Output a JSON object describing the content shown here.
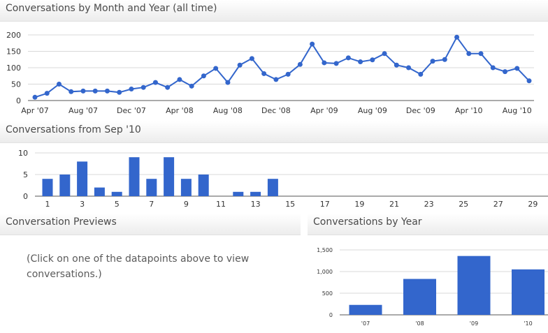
{
  "panels": {
    "monthly_title": "Conversations by Month and Year (all time)",
    "daily_title": "Conversations from Sep '10",
    "previews_title": "Conversation Previews",
    "previews_hint": "(Click on one of the datapoints above to view conversations.)",
    "yearly_title": "Conversations by Year"
  },
  "colors": {
    "series": "#3366cc",
    "grid": "#d8d8d8",
    "axis": "#333333"
  },
  "chart_data": [
    {
      "type": "line",
      "title": "Conversations by Month and Year (all time)",
      "xlabel": "",
      "ylabel": "",
      "ylim": [
        0,
        200
      ],
      "yticks": [
        "0",
        "50",
        "100",
        "150",
        "200"
      ],
      "x": [
        "Apr '07",
        "May '07",
        "Jun '07",
        "Jul '07",
        "Aug '07",
        "Sep '07",
        "Oct '07",
        "Nov '07",
        "Dec '07",
        "Jan '08",
        "Feb '08",
        "Mar '08",
        "Apr '08",
        "May '08",
        "Jun '08",
        "Jul '08",
        "Aug '08",
        "Sep '08",
        "Oct '08",
        "Nov '08",
        "Dec '08",
        "Jan '09",
        "Feb '09",
        "Mar '09",
        "Apr '09",
        "May '09",
        "Jun '09",
        "Jul '09",
        "Aug '09",
        "Sep '09",
        "Oct '09",
        "Nov '09",
        "Dec '09",
        "Jan '10",
        "Feb '10",
        "Mar '10",
        "Apr '10",
        "May '10",
        "Jun '10",
        "Jul '10",
        "Aug '10",
        "Sep '10"
      ],
      "xtick_labels": [
        "Apr '07",
        "Aug '07",
        "Dec '07",
        "Apr '08",
        "Aug '08",
        "Dec '08",
        "Apr '09",
        "Aug '09",
        "Dec '09",
        "Apr '10",
        "Aug '10"
      ],
      "values": [
        10,
        22,
        50,
        27,
        29,
        29,
        29,
        25,
        35,
        40,
        55,
        40,
        64,
        44,
        75,
        98,
        55,
        108,
        128,
        82,
        64,
        80,
        110,
        172,
        115,
        113,
        130,
        118,
        124,
        143,
        108,
        100,
        80,
        120,
        125,
        193,
        143,
        143,
        100,
        88,
        98,
        60
      ],
      "grid": true
    },
    {
      "type": "bar",
      "title": "Conversations from Sep '10",
      "xlabel": "",
      "ylabel": "",
      "ylim": [
        0,
        10
      ],
      "yticks": [
        "0",
        "5",
        "10"
      ],
      "categories": [
        "1",
        "2",
        "3",
        "4",
        "5",
        "6",
        "7",
        "8",
        "9",
        "10",
        "11",
        "12",
        "13",
        "14",
        "15",
        "16",
        "17",
        "18",
        "19",
        "20",
        "21",
        "22",
        "23",
        "24",
        "25",
        "26",
        "27",
        "28",
        "29",
        "30"
      ],
      "xtick_labels": [
        "1",
        "3",
        "5",
        "7",
        "9",
        "11",
        "13",
        "15",
        "17",
        "19",
        "21",
        "23",
        "25",
        "27",
        "29"
      ],
      "values": [
        4,
        5,
        8,
        2,
        1,
        9,
        4,
        9,
        4,
        5,
        0,
        1,
        1,
        4,
        0,
        0,
        0,
        0,
        0,
        0,
        0,
        0,
        0,
        0,
        0,
        0,
        0,
        0,
        0,
        0
      ],
      "grid": true
    },
    {
      "type": "bar",
      "title": "Conversations by Year",
      "xlabel": "",
      "ylabel": "",
      "ylim": [
        0,
        1500
      ],
      "yticks": [
        "0",
        "500",
        "1,000",
        "1,500"
      ],
      "categories": [
        "'07",
        "'08",
        "'09",
        "'10"
      ],
      "values": [
        230,
        830,
        1360,
        1050
      ],
      "grid": true
    }
  ]
}
